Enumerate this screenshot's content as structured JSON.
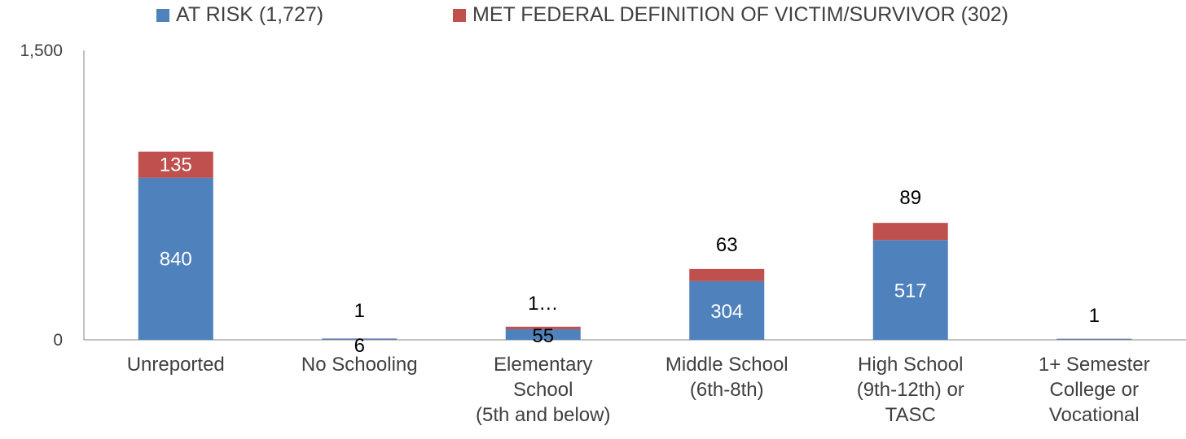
{
  "chart_data": {
    "type": "bar",
    "stacked": true,
    "categories": [
      [
        "Unreported"
      ],
      [
        "No Schooling"
      ],
      [
        "Elementary",
        "School",
        "(5th and below)"
      ],
      [
        "Middle School",
        "(6th-8th)"
      ],
      [
        "High School",
        "(9th-12th) or",
        "TASC"
      ],
      [
        "1+ Semester",
        "College or",
        "Vocational"
      ]
    ],
    "series": [
      {
        "name": "AT RISK (1,727)",
        "color": "#4f81bd",
        "values": [
          840,
          6,
          55,
          304,
          517,
          5
        ],
        "labels": [
          "840",
          "6",
          "55",
          "304",
          "517",
          ""
        ],
        "label_color": [
          "#ffffff",
          "#000000",
          "#000000",
          "#ffffff",
          "#ffffff",
          "#ffffff"
        ]
      },
      {
        "name": "MET FEDERAL DEFINITION OF VICTIM/SURVIVOR (302)",
        "color": "#c0504d",
        "values": [
          135,
          1,
          13,
          63,
          89,
          1
        ],
        "labels": [
          "135",
          "1",
          "1…",
          "63",
          "89",
          "1"
        ],
        "label_color": [
          "#ffffff",
          "#000000",
          "#000000",
          "#000000",
          "#000000",
          "#000000"
        ]
      }
    ],
    "y_ticks": [
      "0",
      "1,500"
    ],
    "ylim": [
      0,
      1500
    ],
    "grid": false,
    "legend_position": "top"
  }
}
